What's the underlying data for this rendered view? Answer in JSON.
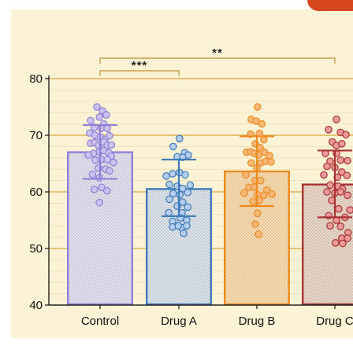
{
  "chart_data": {
    "type": "bar",
    "title": "",
    "xlabel": "",
    "ylabel": "",
    "ylim": [
      40,
      80
    ],
    "yticks": [
      40,
      50,
      60,
      70,
      80
    ],
    "grid": true,
    "categories": [
      "Control",
      "Drug A",
      "Drug B",
      "Drug C"
    ],
    "values": [
      67.0,
      60.5,
      63.6,
      61.3
    ],
    "error_upper": [
      71.8,
      65.7,
      69.8,
      67.3
    ],
    "error_lower": [
      62.3,
      55.7,
      57.5,
      55.5
    ],
    "colors": [
      "#8f7fd6",
      "#3e7ab8",
      "#ef8a1f",
      "#a83232"
    ],
    "fill_colors": [
      "#e5e0f0",
      "#dce3ea",
      "#fbdcae",
      "#ead7c8"
    ],
    "point_fill": [
      "#cbc3ef",
      "#b5cdee",
      "#f7b877",
      "#ec9a9a"
    ],
    "points": [
      [
        [
          -0.1,
          75.0
        ],
        [
          0.08,
          74.3
        ],
        [
          0.2,
          73.6
        ],
        [
          -0.02,
          73.2
        ],
        [
          0.12,
          72.0
        ],
        [
          -0.3,
          72.6
        ],
        [
          -0.18,
          71.4
        ],
        [
          0.03,
          71.2
        ],
        [
          0.23,
          71.2
        ],
        [
          -0.33,
          70.4
        ],
        [
          -0.16,
          70.0
        ],
        [
          0.01,
          69.7
        ],
        [
          0.16,
          69.2
        ],
        [
          0.3,
          69.9
        ],
        [
          -0.3,
          68.6
        ],
        [
          -0.17,
          68.7
        ],
        [
          0.12,
          68.8
        ],
        [
          -0.05,
          68.2
        ],
        [
          0.23,
          68.2
        ],
        [
          0.36,
          68.3
        ],
        [
          -0.02,
          67.1
        ],
        [
          0.12,
          67.3
        ],
        [
          0.28,
          66.9
        ],
        [
          -0.21,
          66.8
        ],
        [
          -0.37,
          66.5
        ],
        [
          0.35,
          66.3
        ],
        [
          -0.15,
          65.6
        ],
        [
          0.03,
          65.7
        ],
        [
          0.23,
          65.7
        ],
        [
          0.42,
          65.2
        ],
        [
          -0.05,
          64.2
        ],
        [
          0.18,
          64.0
        ],
        [
          0.3,
          63.7
        ],
        [
          -0.24,
          63.1
        ],
        [
          -0.02,
          62.5
        ],
        [
          0.05,
          60.8
        ],
        [
          -0.18,
          60.4
        ],
        [
          0.22,
          60.2
        ],
        [
          -0.02,
          58.1
        ]
      ],
      [
        [
          -0.18,
          68.0
        ],
        [
          0.02,
          69.4
        ],
        [
          0.18,
          66.9
        ],
        [
          0.3,
          66.5
        ],
        [
          -0.05,
          66.2
        ],
        [
          0.12,
          66.1
        ],
        [
          -0.4,
          62.8
        ],
        [
          -0.2,
          63.2
        ],
        [
          0.02,
          63.4
        ],
        [
          0.2,
          63.0
        ],
        [
          0.36,
          61.2
        ],
        [
          -0.3,
          61.3
        ],
        [
          -0.05,
          61.0
        ],
        [
          0.12,
          60.6
        ],
        [
          -0.18,
          59.7
        ],
        [
          0.03,
          59.5
        ],
        [
          0.28,
          59.9
        ],
        [
          -0.3,
          58.7
        ],
        [
          0.12,
          58.2
        ],
        [
          -0.05,
          57.5
        ],
        [
          0.28,
          57.3
        ],
        [
          0.1,
          56.3
        ],
        [
          -0.32,
          56.3
        ],
        [
          0.05,
          55.4
        ],
        [
          0.25,
          55.0
        ],
        [
          -0.2,
          54.8
        ],
        [
          -0.2,
          53.8
        ],
        [
          0.08,
          53.7
        ],
        [
          -0.02,
          54.0
        ],
        [
          0.25,
          54.0
        ],
        [
          0.15,
          52.7
        ]
      ],
      [
        [
          0.02,
          75.0
        ],
        [
          -0.18,
          72.8
        ],
        [
          -0.02,
          72.5
        ],
        [
          0.16,
          72.0
        ],
        [
          -0.2,
          70.2
        ],
        [
          0.08,
          70.3
        ],
        [
          0.22,
          69.2
        ],
        [
          -0.05,
          68.5
        ],
        [
          0.1,
          67.8
        ],
        [
          -0.33,
          67.0
        ],
        [
          -0.2,
          67.1
        ],
        [
          -0.08,
          66.8
        ],
        [
          0.24,
          67.0
        ],
        [
          0.4,
          66.4
        ],
        [
          0.05,
          66.5
        ],
        [
          -0.18,
          65.1
        ],
        [
          0.12,
          65.1
        ],
        [
          0.28,
          65.4
        ],
        [
          0.45,
          65.3
        ],
        [
          0.0,
          64.2
        ],
        [
          -0.35,
          63.0
        ],
        [
          -0.05,
          62.0
        ],
        [
          0.12,
          62.0
        ],
        [
          -0.25,
          60.8
        ],
        [
          -0.08,
          60.8
        ],
        [
          0.32,
          60.3
        ],
        [
          -0.4,
          59.8
        ],
        [
          0.02,
          59.5
        ],
        [
          0.22,
          59.4
        ],
        [
          0.48,
          59.6
        ],
        [
          -0.12,
          58.3
        ],
        [
          0.08,
          58.5
        ],
        [
          0.02,
          56.2
        ],
        [
          -0.05,
          54.3
        ],
        [
          0.05,
          52.5
        ]
      ],
      [
        [
          0.05,
          72.8
        ],
        [
          -0.2,
          71.0
        ],
        [
          0.18,
          70.5
        ],
        [
          0.35,
          70.1
        ],
        [
          -0.08,
          68.8
        ],
        [
          0.05,
          68.2
        ],
        [
          0.22,
          68.5
        ],
        [
          -0.3,
          66.8
        ],
        [
          0.05,
          66.8
        ],
        [
          -0.15,
          65.4
        ],
        [
          0.18,
          65.6
        ],
        [
          0.4,
          65.5
        ],
        [
          -0.25,
          64.5
        ],
        [
          0.0,
          64.3
        ],
        [
          0.22,
          63.5
        ],
        [
          -0.35,
          63.0
        ],
        [
          0.08,
          62.6
        ],
        [
          0.38,
          62.9
        ],
        [
          -0.15,
          61.2
        ],
        [
          0.1,
          61.0
        ],
        [
          0.24,
          60.5
        ],
        [
          -0.25,
          60.0
        ],
        [
          0.0,
          59.8
        ],
        [
          0.18,
          60.0
        ],
        [
          0.4,
          59.4
        ],
        [
          -0.1,
          58.5
        ],
        [
          0.12,
          57.0
        ],
        [
          0.48,
          56.8
        ],
        [
          -0.2,
          55.8
        ],
        [
          0.05,
          55.0
        ],
        [
          0.32,
          55.5
        ],
        [
          -0.15,
          54.0
        ],
        [
          0.18,
          53.9
        ],
        [
          0.42,
          52.8
        ],
        [
          0.22,
          51.8
        ],
        [
          0.4,
          51.8
        ],
        [
          0.02,
          51.0
        ],
        [
          0.25,
          50.9
        ]
      ]
    ],
    "significance": [
      {
        "from": 0,
        "to": 1,
        "label": "***",
        "level": 1
      },
      {
        "from": 0,
        "to": 3,
        "label": "**",
        "level": 2
      }
    ]
  }
}
